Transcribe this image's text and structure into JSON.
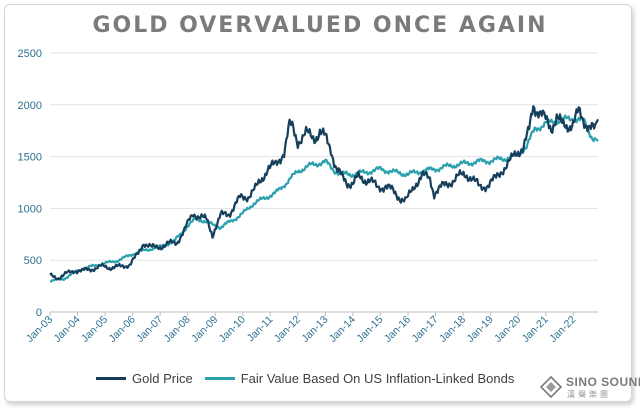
{
  "chart_data": {
    "type": "line",
    "title": "GOLD OVERVALUED ONCE AGAIN",
    "xlabel": "",
    "ylabel": "",
    "ylim": [
      0,
      2500
    ],
    "yticks": [
      "0",
      "500",
      "1000",
      "1500",
      "2000",
      "2500"
    ],
    "xlim": [
      2003.0,
      2022.9
    ],
    "xtick_labels": [
      "Jan-03",
      "Jan-04",
      "Jan-05",
      "Jan-06",
      "Jan-07",
      "Jan-08",
      "Jan-09",
      "Jan-10",
      "Jan-11",
      "Jan-12",
      "Jan-13",
      "Jan-14",
      "Jan-15",
      "Jan-16",
      "Jan-17",
      "Jan-18",
      "Jan-19",
      "Jan-20",
      "Jan-21",
      "Jan-22"
    ],
    "grid": "horizontal",
    "legend_position": "bottom",
    "series": [
      {
        "name": "Gold Price",
        "color": "#163f5c",
        "x": [
          2003.0,
          2003.3,
          2003.6,
          2003.9,
          2004.2,
          2004.6,
          2004.9,
          2005.2,
          2005.6,
          2005.9,
          2006.2,
          2006.4,
          2006.7,
          2007.0,
          2007.3,
          2007.6,
          2007.9,
          2008.2,
          2008.5,
          2008.7,
          2008.9,
          2009.2,
          2009.5,
          2009.9,
          2010.2,
          2010.5,
          2010.9,
          2011.2,
          2011.5,
          2011.7,
          2011.8,
          2012.0,
          2012.3,
          2012.6,
          2012.8,
          2013.0,
          2013.2,
          2013.4,
          2013.6,
          2013.8,
          2014.0,
          2014.2,
          2014.6,
          2014.9,
          2015.2,
          2015.5,
          2015.9,
          2016.0,
          2016.3,
          2016.5,
          2016.8,
          2016.95,
          2017.2,
          2017.5,
          2017.8,
          2018.1,
          2018.3,
          2018.6,
          2018.9,
          2019.2,
          2019.5,
          2019.8,
          2020.0,
          2020.2,
          2020.4,
          2020.55,
          2020.7,
          2020.9,
          2021.0,
          2021.2,
          2021.4,
          2021.6,
          2021.8,
          2022.0,
          2022.2,
          2022.4,
          2022.6,
          2022.8,
          2022.9
        ],
        "values": [
          350,
          330,
          370,
          400,
          400,
          420,
          440,
          430,
          440,
          460,
          560,
          670,
          620,
          630,
          660,
          670,
          800,
          950,
          920,
          880,
          750,
          930,
          950,
          1100,
          1120,
          1200,
          1380,
          1420,
          1550,
          1800,
          1780,
          1650,
          1720,
          1680,
          1740,
          1680,
          1580,
          1380,
          1300,
          1250,
          1240,
          1300,
          1270,
          1200,
          1220,
          1150,
          1070,
          1100,
          1250,
          1320,
          1280,
          1150,
          1200,
          1250,
          1300,
          1330,
          1300,
          1200,
          1230,
          1290,
          1400,
          1480,
          1550,
          1600,
          1750,
          2000,
          1950,
          1880,
          1850,
          1780,
          1880,
          1800,
          1800,
          1820,
          1930,
          1850,
          1780,
          1750,
          1860
        ]
      },
      {
        "name": "Fair Value Based On US Inflation-Linked Bonds",
        "color": "#2aa1ad",
        "x": [
          2003.0,
          2003.5,
          2004.0,
          2004.5,
          2005.0,
          2005.5,
          2006.0,
          2006.5,
          2007.0,
          2007.5,
          2008.0,
          2008.3,
          2008.6,
          2008.9,
          2009.2,
          2009.6,
          2010.0,
          2010.4,
          2010.8,
          2011.2,
          2011.6,
          2012.0,
          2012.5,
          2013.0,
          2013.3,
          2013.6,
          2014.0,
          2014.5,
          2015.0,
          2015.5,
          2016.0,
          2016.5,
          2017.0,
          2017.5,
          2018.0,
          2018.5,
          2019.0,
          2019.5,
          2020.0,
          2020.3,
          2020.6,
          2021.0,
          2021.5,
          2022.0,
          2022.4,
          2022.7,
          2022.9
        ],
        "values": [
          300,
          320,
          400,
          440,
          470,
          500,
          560,
          600,
          630,
          680,
          830,
          900,
          880,
          840,
          820,
          880,
          950,
          1050,
          1100,
          1150,
          1250,
          1360,
          1420,
          1450,
          1370,
          1330,
          1330,
          1350,
          1380,
          1350,
          1330,
          1360,
          1380,
          1410,
          1430,
          1450,
          1460,
          1480,
          1520,
          1600,
          1760,
          1820,
          1850,
          1870,
          1840,
          1680,
          1650
        ]
      }
    ]
  },
  "branding": {
    "logo_name": "SINO SOUND",
    "logo_sub": "漢聲樂團"
  }
}
